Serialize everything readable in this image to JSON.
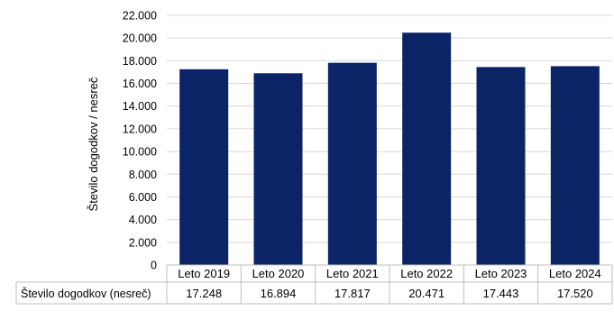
{
  "chart_data": {
    "type": "bar",
    "ylabel": "Število dogodkov / nesreč",
    "categories": [
      "Leto 2019",
      "Leto 2020",
      "Leto 2021",
      "Leto 2022",
      "Leto 2023",
      "Leto 2024"
    ],
    "series": [
      {
        "name": "Število dogodkov (nesreč)",
        "values": [
          17248,
          16894,
          17817,
          20471,
          17443,
          17520
        ],
        "labels": [
          "17.248",
          "16.894",
          "17.817",
          "20.471",
          "17.443",
          "17.520"
        ]
      }
    ],
    "ylim": [
      0,
      22000
    ],
    "yticks": [
      0,
      2000,
      4000,
      6000,
      8000,
      10000,
      12000,
      14000,
      16000,
      18000,
      20000,
      22000
    ],
    "ytick_labels": [
      "0",
      "2.000",
      "4.000",
      "6.000",
      "8.000",
      "10.000",
      "12.000",
      "14.000",
      "16.000",
      "18.000",
      "20.000",
      "22.000"
    ],
    "grid": true,
    "legend": "none",
    "data_table": true,
    "colors": {
      "bar": "#0b2466",
      "grid": "#d9d9d9",
      "table_border": "#bfbfbf"
    }
  }
}
